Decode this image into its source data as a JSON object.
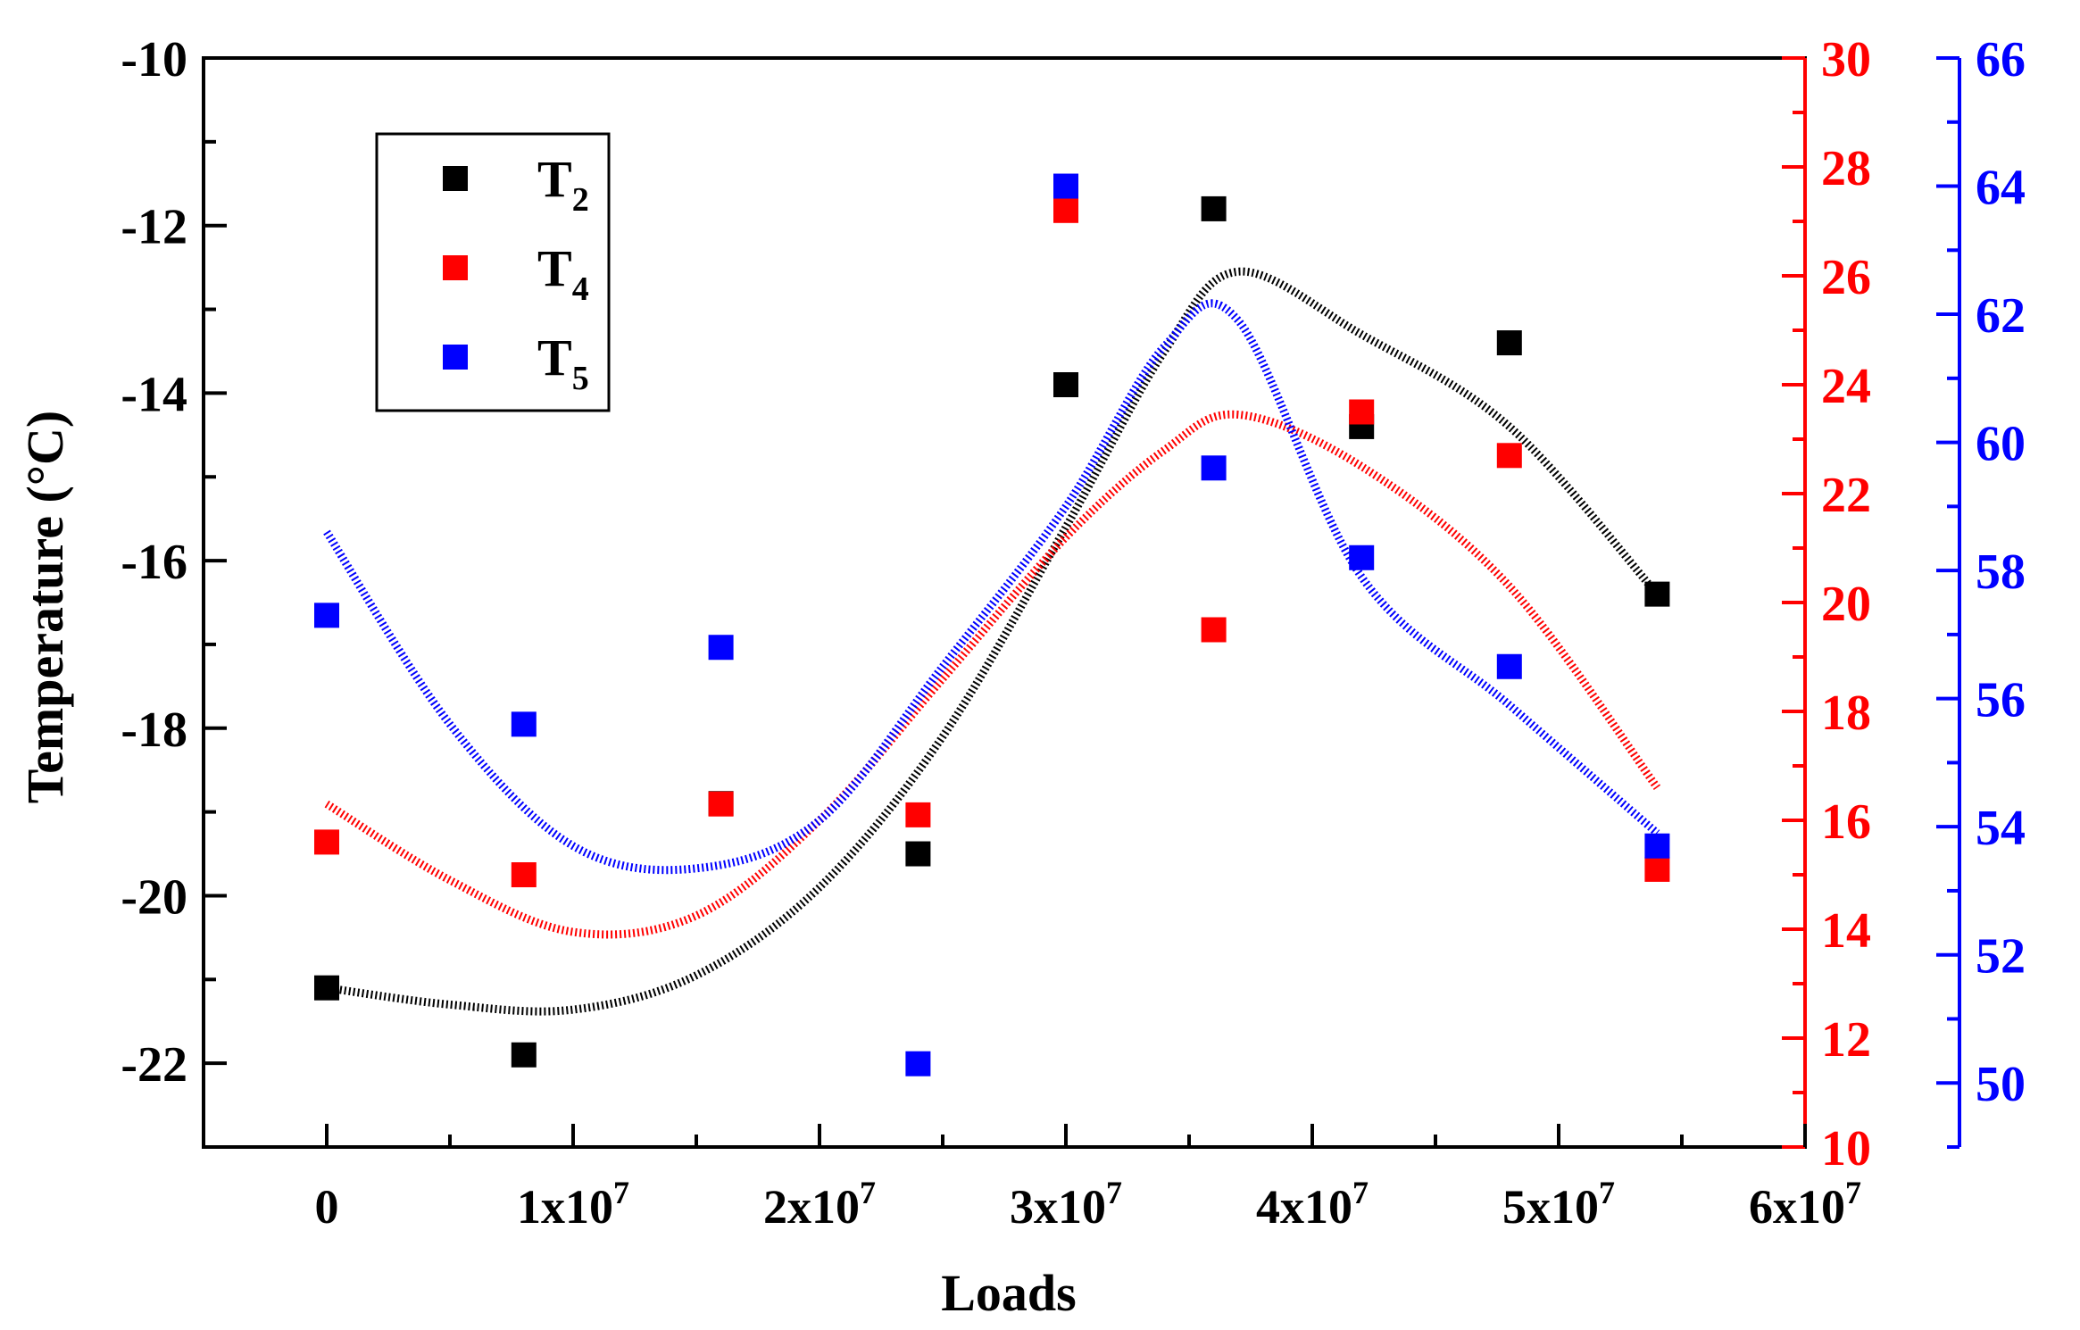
{
  "chart_data": {
    "type": "scatter",
    "xlabel": "Loads",
    "ylabel": "Temperature (°C)",
    "x_ticks": [
      {
        "value": 0,
        "label": "0"
      },
      {
        "value": 10000000,
        "label": "1x10",
        "exp": "7"
      },
      {
        "value": 20000000,
        "label": "2x10",
        "exp": "7"
      },
      {
        "value": 30000000,
        "label": "3x10",
        "exp": "7"
      },
      {
        "value": 40000000,
        "label": "4x10",
        "exp": "7"
      },
      {
        "value": 50000000,
        "label": "5x10",
        "exp": "7"
      },
      {
        "value": 60000000,
        "label": "6x10",
        "exp": "7"
      }
    ],
    "xlim": [
      -5000000,
      60000000
    ],
    "axes": {
      "left": {
        "ylim": [
          -23,
          -10
        ],
        "ticks": [
          -22,
          -20,
          -18,
          -16,
          -14,
          -12,
          -10
        ],
        "color": "#000000"
      },
      "right1": {
        "ylim": [
          10,
          30
        ],
        "ticks": [
          10,
          12,
          14,
          16,
          18,
          20,
          22,
          24,
          26,
          28,
          30
        ],
        "color": "#ff0000"
      },
      "right2": {
        "ylim": [
          49,
          66
        ],
        "ticks": [
          50,
          52,
          54,
          56,
          58,
          60,
          62,
          64,
          66
        ],
        "color": "#0000ff"
      }
    },
    "series": [
      {
        "name": "T",
        "sub": "2",
        "axis": "left",
        "color": "#000000",
        "x": [
          0,
          8000000,
          16000000,
          24000000,
          30000000,
          36000000,
          42000000,
          48000000,
          54000000
        ],
        "values": [
          -21.1,
          -21.9,
          -18.9,
          -19.5,
          -13.9,
          -11.8,
          -14.4,
          -13.4,
          -16.4
        ],
        "fit": [
          -21.1,
          -21.3,
          -21.36,
          -20.95,
          -19.9,
          -18.1,
          -15.6,
          -13.5,
          -12.55,
          -13.3,
          -14.4,
          -16.4
        ]
      },
      {
        "name": "T",
        "sub": "4",
        "axis": "right1",
        "color": "#ff0000",
        "x": [
          0,
          8000000,
          16000000,
          24000000,
          30000000,
          36000000,
          42000000,
          48000000,
          54000000
        ],
        "values": [
          15.6,
          15.0,
          16.3,
          16.1,
          27.2,
          19.5,
          23.5,
          22.7,
          15.1
        ],
        "fit": [
          16.3,
          14.9,
          13.95,
          14.25,
          16.0,
          18.6,
          21.2,
          22.8,
          23.45,
          22.5,
          20.3,
          16.6
        ]
      },
      {
        "name": "T",
        "sub": "5",
        "axis": "right2",
        "color": "#0000ff",
        "x": [
          0,
          8000000,
          16000000,
          24000000,
          30000000,
          36000000,
          42000000,
          48000000,
          54000000
        ],
        "values": [
          57.3,
          55.6,
          56.8,
          50.3,
          64.0,
          59.6,
          58.2,
          56.5,
          53.7
        ],
        "fit": [
          58.6,
          55.6,
          53.7,
          53.35,
          54.1,
          56.5,
          59.0,
          61.5,
          61.9,
          57.9,
          55.9,
          53.9
        ]
      }
    ],
    "fit_x": [
      0,
      5000000,
      10000000,
      15000000,
      20000000,
      25000000,
      30000000,
      34000000,
      37000000,
      42000000,
      48000000,
      54000000
    ],
    "legend": {
      "position": "top-left"
    }
  }
}
